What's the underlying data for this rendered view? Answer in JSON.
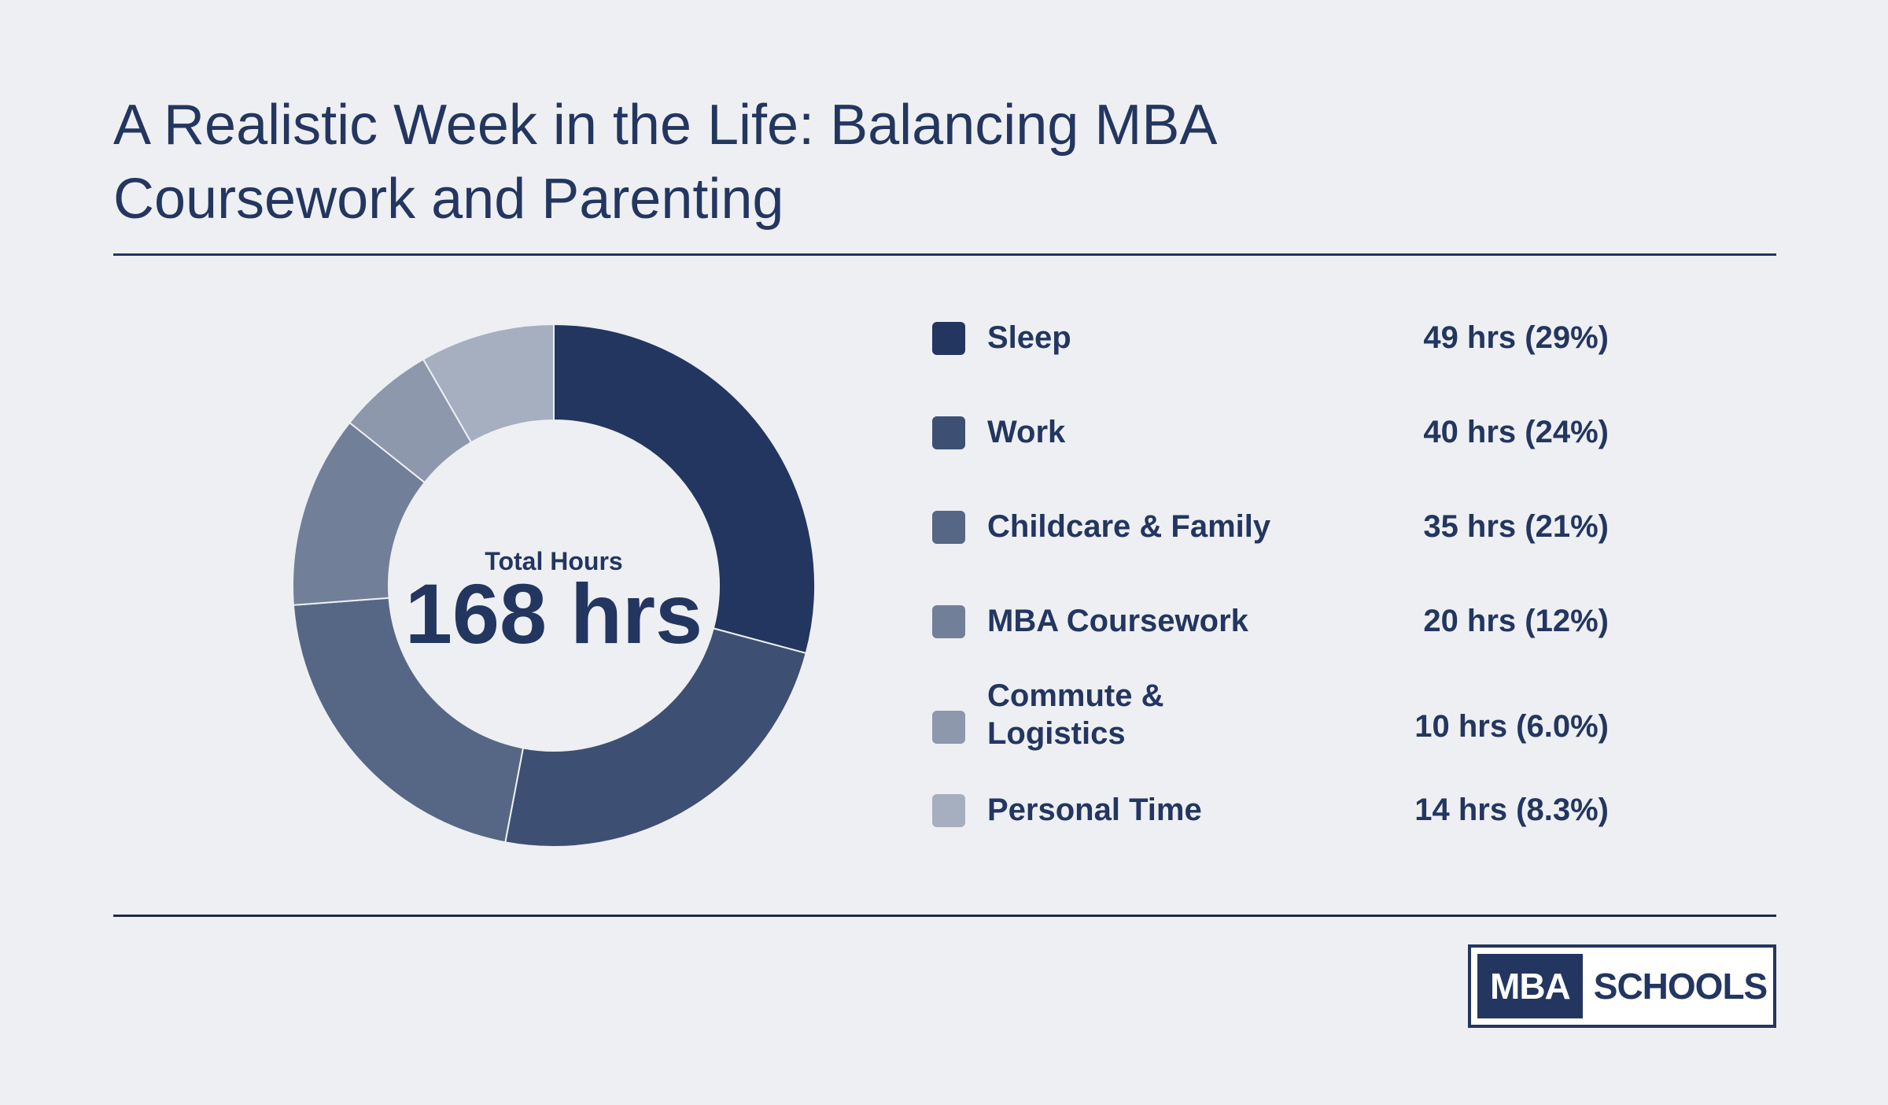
{
  "title": "A Realistic Week in the Life: Balancing MBA Coursework and Parenting",
  "center": {
    "label": "Total Hours",
    "value": "168 hrs"
  },
  "chart_data": {
    "type": "pie",
    "title": "A Realistic Week in the Life: Balancing MBA Coursework and Parenting",
    "total_label": "Total Hours",
    "total_value": 168,
    "categories": [
      "Sleep",
      "Work",
      "Childcare & Family",
      "MBA Coursework",
      "Commute & Logistics",
      "Personal Time"
    ],
    "values": [
      49,
      40,
      35,
      20,
      10,
      14
    ],
    "value_labels": [
      "49 hrs (29%)",
      "40 hrs (24%)",
      "35 hrs (21%)",
      "20 hrs (12%)",
      "10 hrs (6.0%)",
      "14 hrs (8.3%)"
    ],
    "colors": [
      "#233660",
      "#3d5073",
      "#566785",
      "#727f99",
      "#8d98ad",
      "#a6afc0"
    ],
    "legend_position": "right"
  },
  "legend": [
    {
      "label_lines": [
        "Sleep"
      ],
      "value": "49 hrs (29%)"
    },
    {
      "label_lines": [
        "Work"
      ],
      "value": "40 hrs (24%)"
    },
    {
      "label_lines": [
        "Childcare & Family"
      ],
      "value": "35 hrs (21%)"
    },
    {
      "label_lines": [
        "MBA Coursework"
      ],
      "value": "20 hrs (12%)"
    },
    {
      "label_lines": [
        "Commute &",
        "Logistics"
      ],
      "value": "10 hrs (6.0%)"
    },
    {
      "label_lines": [
        "Personal Time"
      ],
      "value": "14 hrs (8.3%)"
    }
  ],
  "logo": {
    "part1": "MBA",
    "part2": "SCHOOLS"
  }
}
